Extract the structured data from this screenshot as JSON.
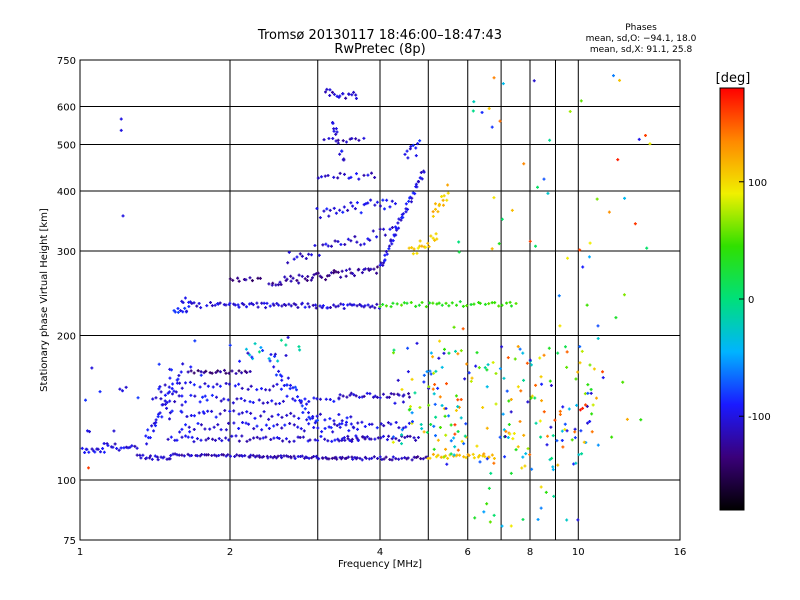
{
  "chart_data": {
    "type": "scatter",
    "title": "Tromsø 20130117 18:46:00–18:47:43",
    "subtitle": "RwPretec (8p)",
    "xlabel": "Frequency [MHz]",
    "ylabel": "Stationary phase Virtual Height [km]",
    "x_scale": "log",
    "y_scale": "log",
    "xlim": [
      1,
      16
    ],
    "ylim": [
      75,
      750
    ],
    "x_ticks": [
      1,
      2,
      4,
      6,
      8,
      10,
      16
    ],
    "y_ticks": [
      75,
      100,
      200,
      300,
      400,
      500,
      600,
      750
    ],
    "x_minor_grid": [
      3,
      5,
      7,
      9
    ],
    "grid": true,
    "phase_info": {
      "heading": "Phases",
      "line_o": "mean, sd,O: −94.1, 18.0",
      "line_x": "mean, sd,X:  91.1, 25.8"
    },
    "colorbar": {
      "label": "[deg]",
      "range": [
        -180,
        180
      ],
      "ticks": [
        100,
        0,
        -100
      ],
      "colors": [
        "#000000",
        "#3a007a",
        "#1a1aff",
        "#00b4ff",
        "#00e07a",
        "#30e000",
        "#f0f000",
        "#ff8800",
        "#ff0000"
      ]
    },
    "segments": [
      {
        "x0": 1.0,
        "x1": 1.12,
        "h0": 115,
        "h1": 115,
        "c": -100,
        "n": 14,
        "jit": 0.012
      },
      {
        "x0": 1.12,
        "x1": 1.3,
        "h0": 118,
        "h1": 116,
        "c": -100,
        "n": 16,
        "jit": 0.015
      },
      {
        "x0": 1.3,
        "x1": 1.52,
        "h0": 112,
        "h1": 111,
        "c": -110,
        "n": 18,
        "jit": 0.01
      },
      {
        "x0": 1.52,
        "x1": 2.2,
        "h0": 113,
        "h1": 112,
        "c": -115,
        "n": 34,
        "jit": 0.006
      },
      {
        "x0": 2.2,
        "x1": 3.6,
        "h0": 112,
        "h1": 111,
        "c": -115,
        "n": 55,
        "jit": 0.006
      },
      {
        "x0": 3.6,
        "x1": 5.0,
        "h0": 111,
        "h1": 111,
        "c": -115,
        "n": 30,
        "jit": 0.008
      },
      {
        "x0": 5.0,
        "x1": 6.8,
        "h0": 112,
        "h1": 112,
        "c": 110,
        "n": 28,
        "jit": 0.01
      },
      {
        "x0": 1.35,
        "x1": 1.6,
        "h0": 120,
        "h1": 165,
        "c": -100,
        "n": 30,
        "jit": 0.03
      },
      {
        "x0": 1.5,
        "x1": 3.8,
        "h0": 122,
        "h1": 122,
        "c": -105,
        "n": 60,
        "jit": 0.015
      },
      {
        "x0": 1.6,
        "x1": 3.6,
        "h0": 130,
        "h1": 128,
        "c": -100,
        "n": 45,
        "jit": 0.02
      },
      {
        "x0": 1.6,
        "x1": 3.5,
        "h0": 138,
        "h1": 135,
        "c": -100,
        "n": 40,
        "jit": 0.02
      },
      {
        "x0": 1.65,
        "x1": 2.2,
        "h0": 168,
        "h1": 168,
        "c": -130,
        "n": 22,
        "jit": 0.008
      },
      {
        "x0": 1.45,
        "x1": 2.6,
        "h0": 158,
        "h1": 156,
        "c": -100,
        "n": 30,
        "jit": 0.015
      },
      {
        "x0": 1.4,
        "x1": 3.3,
        "h0": 148,
        "h1": 146,
        "c": -100,
        "n": 45,
        "jit": 0.02
      },
      {
        "x0": 2.4,
        "x1": 3.0,
        "h0": 180,
        "h1": 130,
        "c": -90,
        "n": 30,
        "jit": 0.04
      },
      {
        "x0": 3.3,
        "x1": 4.6,
        "h0": 150,
        "h1": 150,
        "c": -110,
        "n": 28,
        "jit": 0.012
      },
      {
        "x0": 3.2,
        "x1": 4.6,
        "h0": 130,
        "h1": 130,
        "c": -100,
        "n": 22,
        "jit": 0.015
      },
      {
        "x0": 3.3,
        "x1": 4.8,
        "h0": 122,
        "h1": 122,
        "c": -110,
        "n": 28,
        "jit": 0.012
      },
      {
        "x0": 1.55,
        "x1": 1.65,
        "h0": 222,
        "h1": 230,
        "c": -90,
        "n": 10,
        "jit": 0.02
      },
      {
        "x0": 1.6,
        "x1": 1.75,
        "h0": 238,
        "h1": 232,
        "c": -100,
        "n": 10,
        "jit": 0.015
      },
      {
        "x0": 1.8,
        "x1": 4.0,
        "h0": 232,
        "h1": 230,
        "c": -105,
        "n": 75,
        "jit": 0.012
      },
      {
        "x0": 4.0,
        "x1": 7.5,
        "h0": 232,
        "h1": 233,
        "c": 40,
        "n": 40,
        "jit": 0.012
      },
      {
        "x0": 2.0,
        "x1": 2.3,
        "h0": 262,
        "h1": 262,
        "c": -130,
        "n": 10,
        "jit": 0.01
      },
      {
        "x0": 2.4,
        "x1": 4.0,
        "h0": 258,
        "h1": 275,
        "c": -125,
        "n": 55,
        "jit": 0.02
      },
      {
        "x0": 4.0,
        "x1": 4.9,
        "h0": 280,
        "h1": 440,
        "c": -100,
        "n": 50,
        "jit": 0.02
      },
      {
        "x0": 2.6,
        "x1": 4.3,
        "h0": 290,
        "h1": 330,
        "c": -105,
        "n": 35,
        "jit": 0.03
      },
      {
        "x0": 3.0,
        "x1": 4.3,
        "h0": 360,
        "h1": 380,
        "c": -100,
        "n": 30,
        "jit": 0.03
      },
      {
        "x0": 3.0,
        "x1": 3.9,
        "h0": 430,
        "h1": 430,
        "c": -105,
        "n": 16,
        "jit": 0.015
      },
      {
        "x0": 3.1,
        "x1": 3.7,
        "h0": 510,
        "h1": 510,
        "c": -110,
        "n": 12,
        "jit": 0.01
      },
      {
        "x0": 3.1,
        "x1": 3.6,
        "h0": 640,
        "h1": 630,
        "c": -110,
        "n": 18,
        "jit": 0.02
      },
      {
        "x0": 3.2,
        "x1": 3.4,
        "h0": 560,
        "h1": 460,
        "c": -100,
        "n": 14,
        "jit": 0.04
      },
      {
        "x0": 4.6,
        "x1": 5.2,
        "h0": 300,
        "h1": 320,
        "c": 105,
        "n": 18,
        "jit": 0.03
      },
      {
        "x0": 5.1,
        "x1": 5.5,
        "h0": 360,
        "h1": 400,
        "c": 110,
        "n": 14,
        "jit": 0.04
      },
      {
        "x0": 4.5,
        "x1": 4.8,
        "h0": 470,
        "h1": 500,
        "c": -95,
        "n": 10,
        "jit": 0.04
      }
    ],
    "scatter_regions": [
      {
        "x0": 5.0,
        "x1": 11.0,
        "h0": 105,
        "h1": 190,
        "n": 170,
        "cmin": -120,
        "cmax": 160
      },
      {
        "x0": 5.5,
        "x1": 14.0,
        "h0": 120,
        "h1": 700,
        "n": 70,
        "cmin": -120,
        "cmax": 170
      },
      {
        "x0": 4.2,
        "x1": 5.5,
        "h0": 115,
        "h1": 200,
        "n": 45,
        "cmin": -110,
        "cmax": 120
      },
      {
        "x0": 6.0,
        "x1": 10.0,
        "h0": 80,
        "h1": 110,
        "n": 20,
        "cmin": -100,
        "cmax": 120
      },
      {
        "x0": 1.02,
        "x1": 1.8,
        "h0": 125,
        "h1": 175,
        "n": 30,
        "cmin": -110,
        "cmax": -80
      },
      {
        "x0": 2.0,
        "x1": 2.8,
        "h0": 175,
        "h1": 200,
        "n": 20,
        "cmin": -110,
        "cmax": 0
      }
    ],
    "points": [
      {
        "x": 1.21,
        "y": 565,
        "c": -100
      },
      {
        "x": 1.21,
        "y": 535,
        "c": -100
      },
      {
        "x": 1.22,
        "y": 355,
        "c": -100
      },
      {
        "x": 1.04,
        "y": 106,
        "c": 160
      },
      {
        "x": 1.7,
        "y": 195,
        "c": -80
      },
      {
        "x": 10.1,
        "y": 140,
        "c": 175
      },
      {
        "x": 10.2,
        "y": 141,
        "c": 170
      },
      {
        "x": 12.0,
        "y": 465,
        "c": 170
      },
      {
        "x": 12.1,
        "y": 680,
        "c": 110
      }
    ]
  }
}
